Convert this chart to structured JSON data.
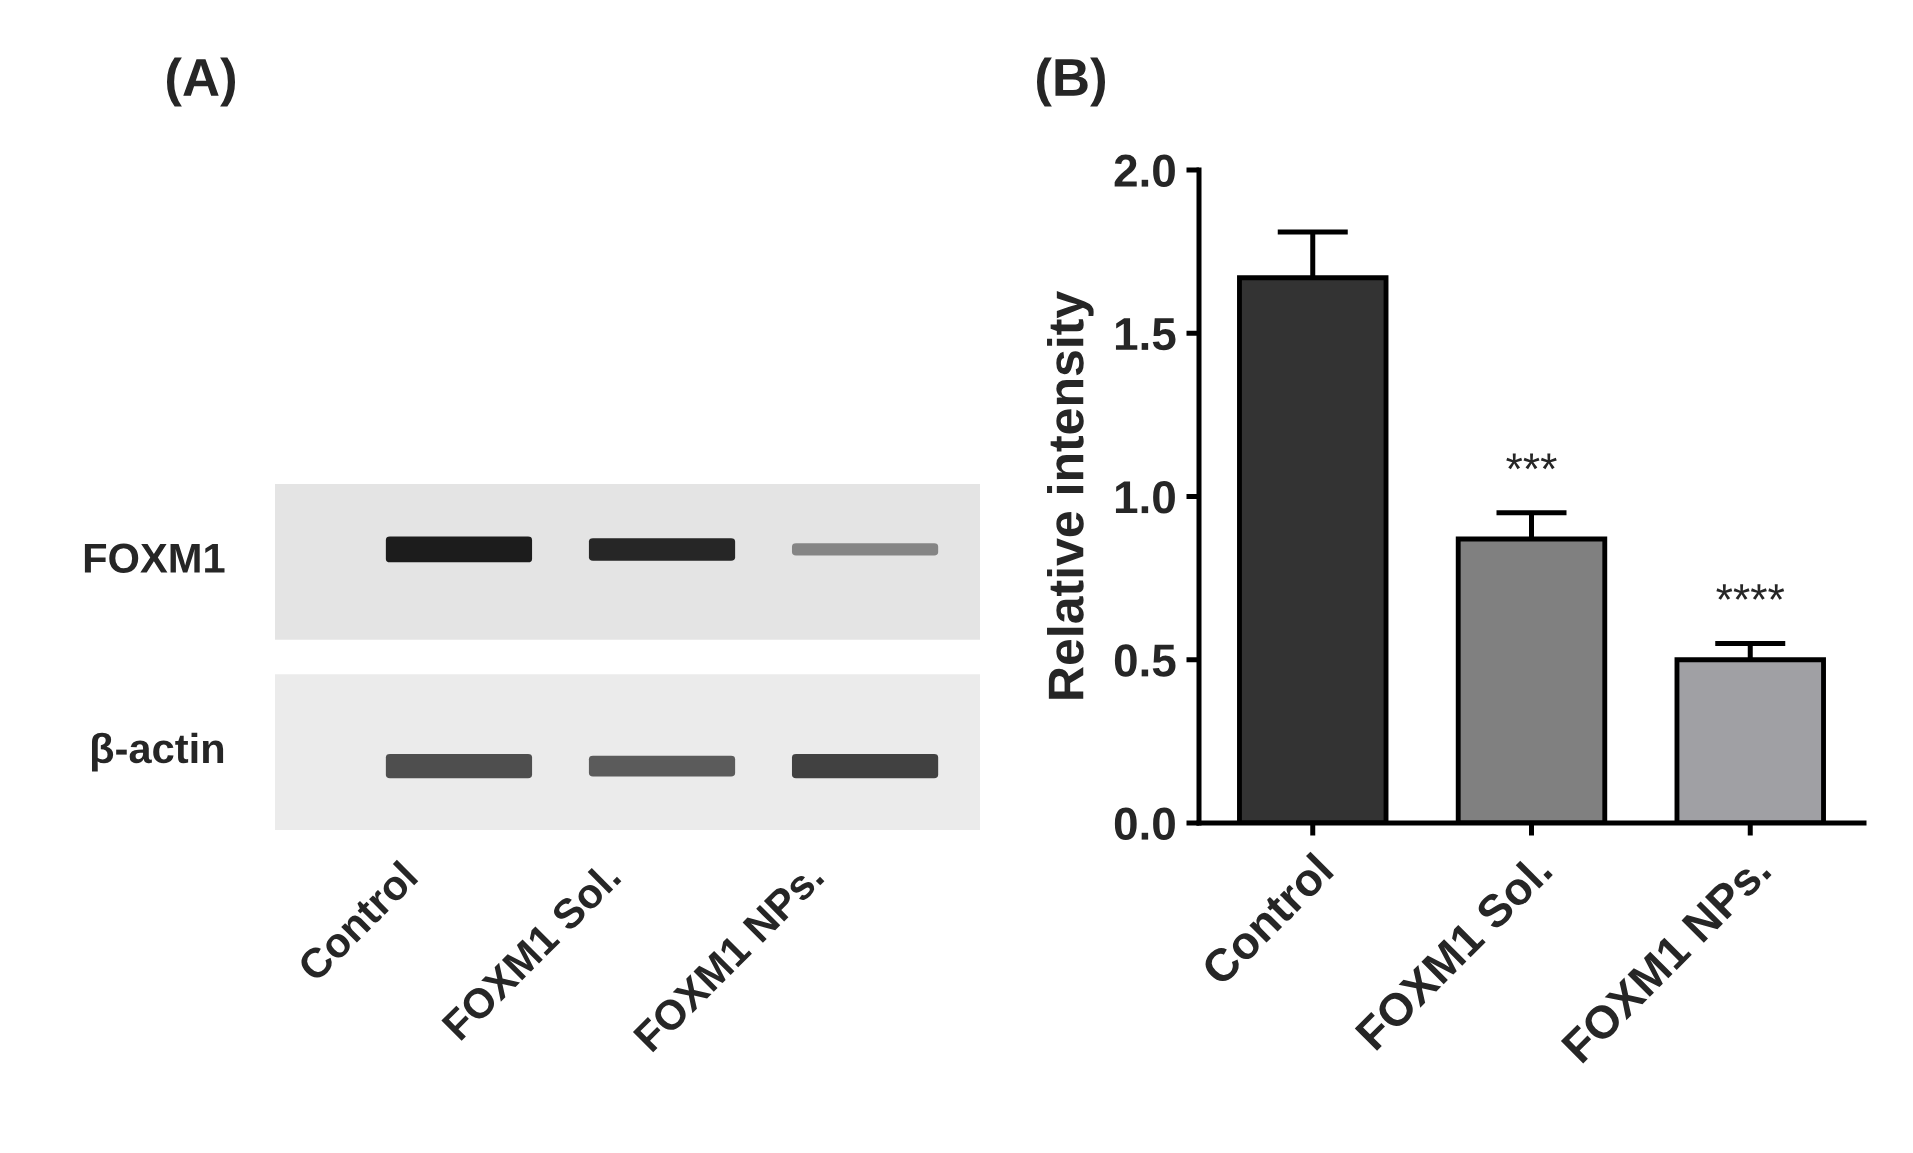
{
  "chart_data": [
    {
      "type": "other",
      "title": "(A)",
      "categories": [
        "Control",
        "FOXM1 Sol.",
        "FOXM1 NPs."
      ],
      "annotations": [
        "FOXM1",
        "β-actin"
      ]
    },
    {
      "type": "bar",
      "title": "(B)",
      "ylabel": "Relative intensity",
      "categories": [
        "Control",
        "FOXM1 Sol.",
        "FOXM1 NPs."
      ],
      "values": [
        1.67,
        0.87,
        0.5
      ],
      "colors": [
        "#333333",
        "#808080",
        "#a0a0a4"
      ],
      "errors": [
        [
          1.67,
          1.81
        ],
        [
          0.87,
          0.95
        ],
        [
          0.5,
          0.55
        ]
      ],
      "ylim": [
        0,
        2.0
      ],
      "yticks": [
        {
          "value": 0,
          "label": "0.0"
        },
        {
          "value": 0.5,
          "label": "0.5"
        },
        {
          "value": 1.0,
          "label": "1.0"
        },
        {
          "value": 1.5,
          "label": "1.5"
        },
        {
          "value": 2.0,
          "label": "2.0"
        }
      ],
      "grid": false,
      "annotations": [
        "***",
        "****"
      ]
    }
  ]
}
